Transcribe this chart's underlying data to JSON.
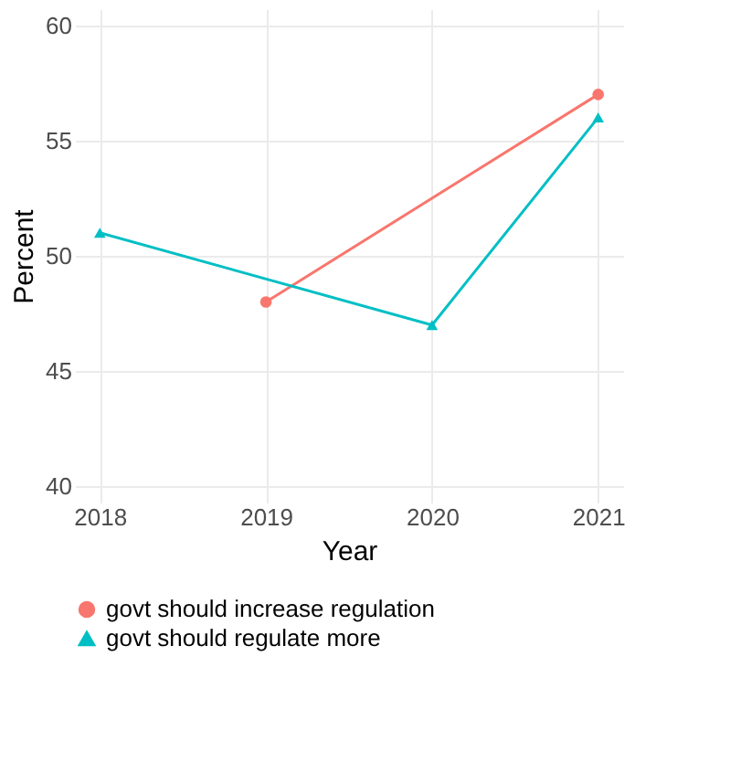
{
  "chart_data": {
    "type": "line",
    "xlabel": "Year",
    "ylabel": "Percent",
    "xlim": [
      2017.85,
      2021.15
    ],
    "xticks": [
      2018,
      2019,
      2020,
      2021
    ],
    "ylim": [
      39.3,
      60.7
    ],
    "yticks": [
      40,
      45,
      50,
      55,
      60
    ],
    "grid": true,
    "legend": "bottom",
    "series": [
      {
        "name": "govt should increase regulation",
        "color": "#f8766d",
        "marker": "circle",
        "x": [
          2019,
          2021
        ],
        "values": [
          48,
          57
        ]
      },
      {
        "name": "govt should regulate more",
        "color": "#00bfc4",
        "marker": "triangle",
        "x": [
          2018,
          2020,
          2021
        ],
        "values": [
          51,
          47,
          56
        ]
      }
    ]
  }
}
